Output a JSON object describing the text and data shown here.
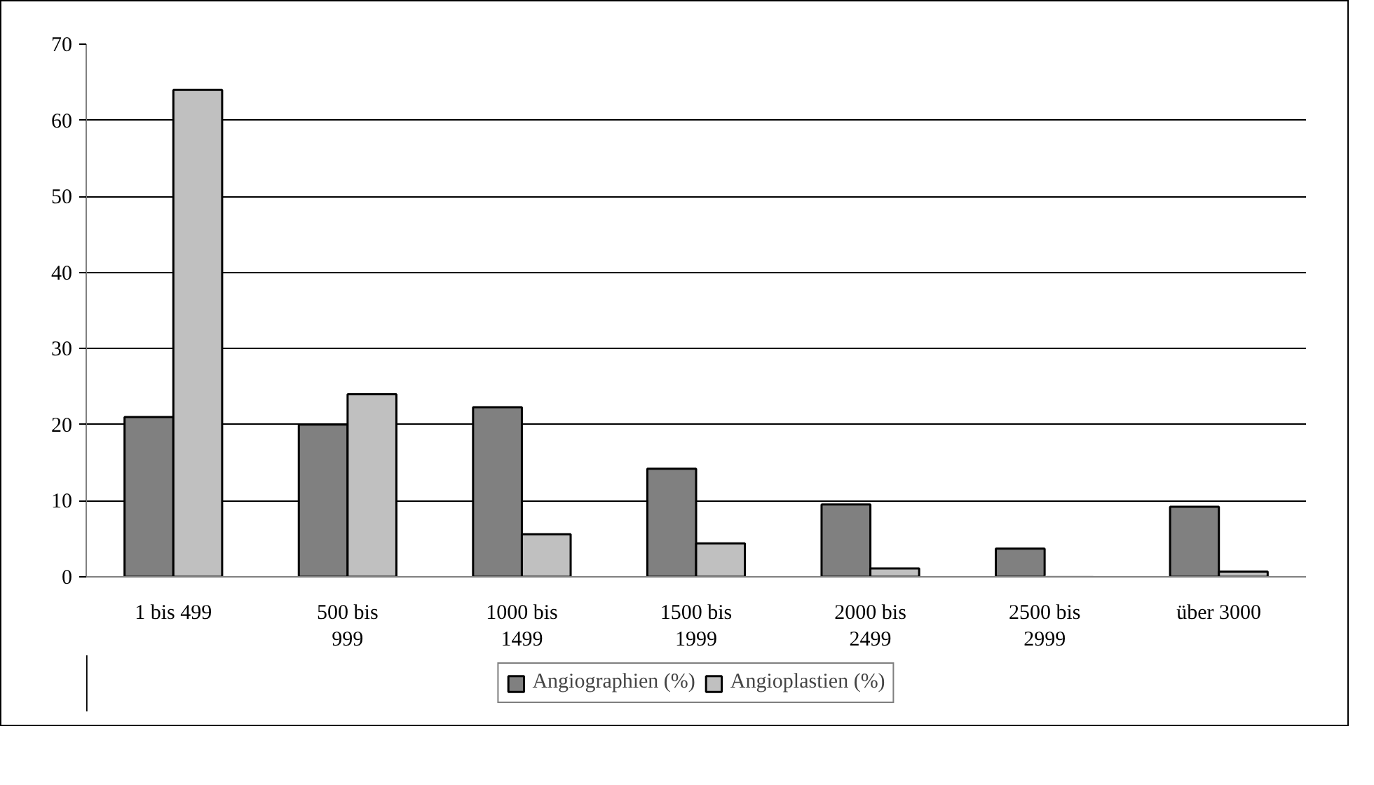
{
  "chart_data": {
    "type": "bar",
    "categories": [
      "1 bis 499",
      "500 bis\n999",
      "1000 bis\n1499",
      "1500 bis\n1999",
      "2000 bis\n2499",
      "2500 bis\n2999",
      "über 3000"
    ],
    "series": [
      {
        "name": "Angiographien (%)",
        "color": "#808080",
        "values": [
          21,
          20,
          22.3,
          14.2,
          9.5,
          3.7,
          9.2
        ]
      },
      {
        "name": "Angioplastien (%)",
        "color": "#c0c0c0",
        "values": [
          64,
          24,
          5.6,
          4.4,
          1.1,
          0,
          0.7
        ]
      }
    ],
    "ylim": [
      0,
      70
    ],
    "yticks": [
      0,
      10,
      20,
      30,
      40,
      50,
      60,
      70
    ],
    "grid": "y",
    "legend": "bottom"
  }
}
